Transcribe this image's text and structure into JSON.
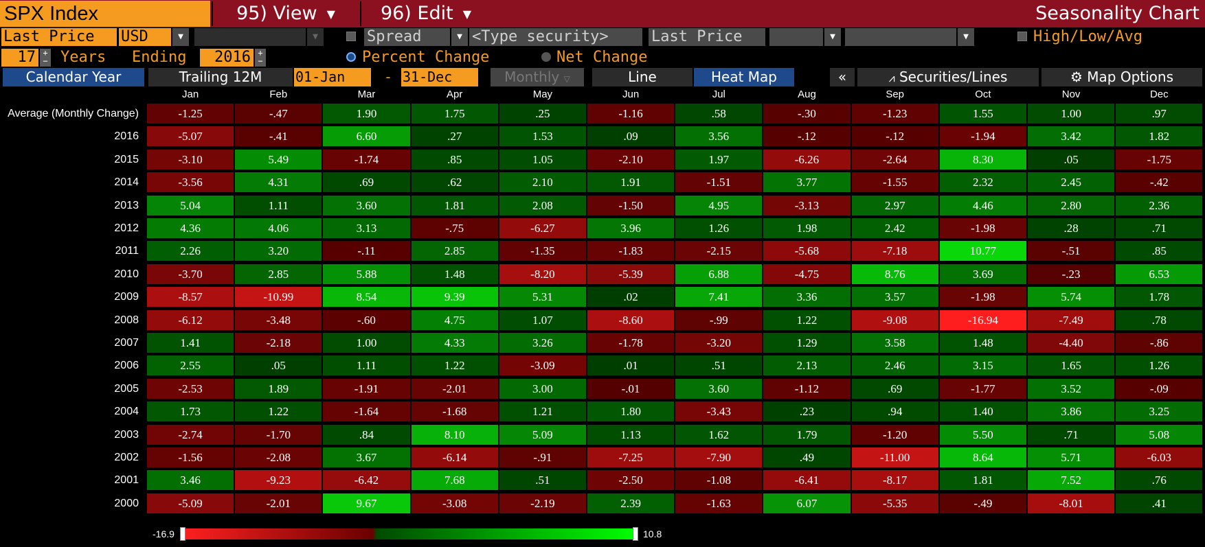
{
  "header": {
    "security": "SPX Index",
    "view_label": "95) View",
    "edit_label": "96) Edit",
    "chart_title": "Seasonality Chart"
  },
  "controls": {
    "price_field": "Last Price",
    "currency": "USD",
    "spread_label": "Spread",
    "type_security_placeholder": "<Type security>",
    "price_field_2": "Last Price",
    "high_low_avg_label": "High/Low/Avg",
    "years": "17",
    "years_label": "Years",
    "ending_label": "Ending",
    "ending_year": "2016",
    "percent_change_label": "Percent Change",
    "net_change_label": "Net Change"
  },
  "tabs": {
    "calendar_year": "Calendar Year",
    "trailing_12m": "Trailing 12M",
    "start_date": "01-Jan",
    "dash": "-",
    "end_date": "31-Dec",
    "period": "Monthly",
    "line": "Line",
    "heat_map": "Heat Map",
    "collapse": "«",
    "securities_lines": "Securities/Lines",
    "map_options": "Map Options"
  },
  "colors": {
    "accent_orange": "#f59c20",
    "title_red": "#8b1020",
    "tab_blue": "#1e4a8c"
  },
  "heatmap": {
    "months": [
      "Jan",
      "Feb",
      "Mar",
      "Apr",
      "May",
      "Jun",
      "Jul",
      "Aug",
      "Sep",
      "Oct",
      "Nov",
      "Dec"
    ],
    "rows": [
      {
        "label": "Average (Monthly Change)",
        "values": [
          "-1.25",
          "-.47",
          "1.90",
          "1.75",
          ".25",
          "-1.16",
          ".58",
          "-.30",
          "-1.23",
          "1.55",
          "1.00",
          ".97"
        ]
      },
      {
        "label": "2016",
        "values": [
          "-5.07",
          "-.41",
          "6.60",
          ".27",
          "1.53",
          ".09",
          "3.56",
          "-.12",
          "-.12",
          "-1.94",
          "3.42",
          "1.82"
        ]
      },
      {
        "label": "2015",
        "values": [
          "-3.10",
          "5.49",
          "-1.74",
          ".85",
          "1.05",
          "-2.10",
          "1.97",
          "-6.26",
          "-2.64",
          "8.30",
          ".05",
          "-1.75"
        ]
      },
      {
        "label": "2014",
        "values": [
          "-3.56",
          "4.31",
          ".69",
          ".62",
          "2.10",
          "1.91",
          "-1.51",
          "3.77",
          "-1.55",
          "2.32",
          "2.45",
          "-.42"
        ]
      },
      {
        "label": "2013",
        "values": [
          "5.04",
          "1.11",
          "3.60",
          "1.81",
          "2.08",
          "-1.50",
          "4.95",
          "-3.13",
          "2.97",
          "4.46",
          "2.80",
          "2.36"
        ]
      },
      {
        "label": "2012",
        "values": [
          "4.36",
          "4.06",
          "3.13",
          "-.75",
          "-6.27",
          "3.96",
          "1.26",
          "1.98",
          "2.42",
          "-1.98",
          ".28",
          ".71"
        ]
      },
      {
        "label": "2011",
        "values": [
          "2.26",
          "3.20",
          "-.11",
          "2.85",
          "-1.35",
          "-1.83",
          "-2.15",
          "-5.68",
          "-7.18",
          "10.77",
          "-.51",
          ".85"
        ]
      },
      {
        "label": "2010",
        "values": [
          "-3.70",
          "2.85",
          "5.88",
          "1.48",
          "-8.20",
          "-5.39",
          "6.88",
          "-4.75",
          "8.76",
          "3.69",
          "-.23",
          "6.53"
        ]
      },
      {
        "label": "2009",
        "values": [
          "-8.57",
          "-10.99",
          "8.54",
          "9.39",
          "5.31",
          ".02",
          "7.41",
          "3.36",
          "3.57",
          "-1.98",
          "5.74",
          "1.78"
        ]
      },
      {
        "label": "2008",
        "values": [
          "-6.12",
          "-3.48",
          "-.60",
          "4.75",
          "1.07",
          "-8.60",
          "-.99",
          "1.22",
          "-9.08",
          "-16.94",
          "-7.49",
          ".78"
        ]
      },
      {
        "label": "2007",
        "values": [
          "1.41",
          "-2.18",
          "1.00",
          "4.33",
          "3.26",
          "-1.78",
          "-3.20",
          "1.29",
          "3.58",
          "1.48",
          "-4.40",
          "-.86"
        ]
      },
      {
        "label": "2006",
        "values": [
          "2.55",
          ".05",
          "1.11",
          "1.22",
          "-3.09",
          ".01",
          ".51",
          "2.13",
          "2.46",
          "3.15",
          "1.65",
          "1.26"
        ]
      },
      {
        "label": "2005",
        "values": [
          "-2.53",
          "1.89",
          "-1.91",
          "-2.01",
          "3.00",
          "-.01",
          "3.60",
          "-1.12",
          ".69",
          "-1.77",
          "3.52",
          "-.09"
        ]
      },
      {
        "label": "2004",
        "values": [
          "1.73",
          "1.22",
          "-1.64",
          "-1.68",
          "1.21",
          "1.80",
          "-3.43",
          ".23",
          ".94",
          "1.40",
          "3.86",
          "3.25"
        ]
      },
      {
        "label": "2003",
        "values": [
          "-2.74",
          "-1.70",
          ".84",
          "8.10",
          "5.09",
          "1.13",
          "1.62",
          "1.79",
          "-1.20",
          "5.50",
          ".71",
          "5.08"
        ]
      },
      {
        "label": "2002",
        "values": [
          "-1.56",
          "-2.08",
          "3.67",
          "-6.14",
          "-.91",
          "-7.25",
          "-7.90",
          ".49",
          "-11.00",
          "8.64",
          "5.71",
          "-6.03"
        ]
      },
      {
        "label": "2001",
        "values": [
          "3.46",
          "-9.23",
          "-6.42",
          "7.68",
          ".51",
          "-2.50",
          "-1.08",
          "-6.41",
          "-8.17",
          "1.81",
          "7.52",
          ".76"
        ]
      },
      {
        "label": "2000",
        "values": [
          "-5.09",
          "-2.01",
          "9.67",
          "-3.08",
          "-2.19",
          "2.39",
          "-1.63",
          "6.07",
          "-5.35",
          "-.49",
          "-8.01",
          ".41"
        ]
      }
    ],
    "legend_min": "-16.9",
    "legend_max": "10.8",
    "scale_min": -16.9,
    "scale_max": 10.8
  }
}
